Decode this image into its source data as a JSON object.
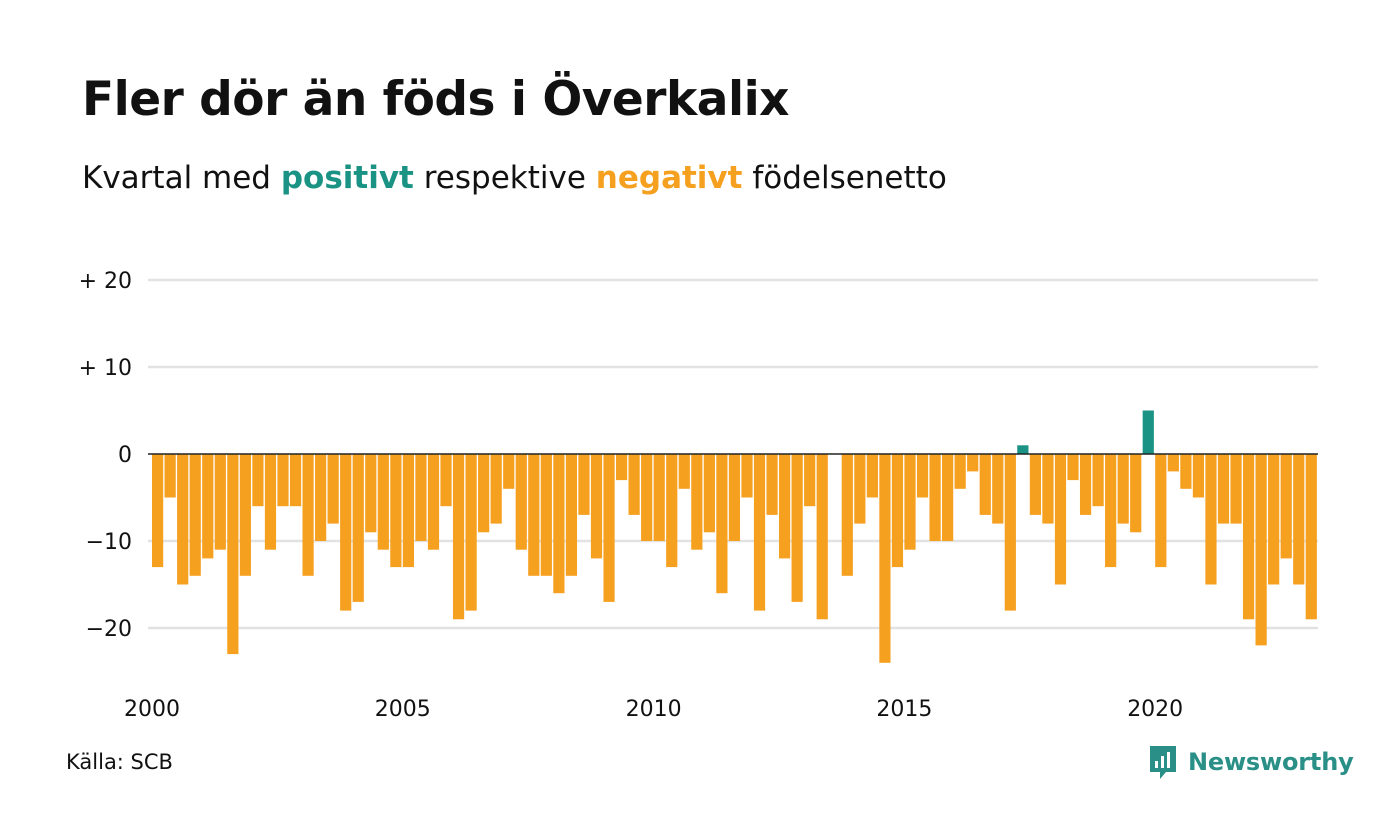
{
  "header": {
    "title": "Fler dör än föds i Överkalix",
    "subtitle_pre": "Kvartal med ",
    "subtitle_pos": "positivt",
    "subtitle_mid": " respektive ",
    "subtitle_neg": "negativt",
    "subtitle_post": " födelsenetto"
  },
  "footer": {
    "source": "Källa: SCB",
    "brand": "Newsworthy",
    "brand_icon": "bar-chart-speech-bubble-icon"
  },
  "colors": {
    "positive": "#1a9384",
    "negative": "#f6a020",
    "grid": "#e2e2e2",
    "zero_line": "#222222",
    "brand": "#2a8f86"
  },
  "chart_data": {
    "type": "bar",
    "title": "Fler dör än föds i Överkalix",
    "xlabel": "",
    "ylabel": "",
    "x_start": 2000,
    "x_end": 2023.25,
    "xticks": [
      2000,
      2005,
      2010,
      2015,
      2020
    ],
    "xtick_labels": [
      "2000",
      "2005",
      "2010",
      "2015",
      "2020"
    ],
    "yticks": [
      20,
      10,
      0,
      -10,
      -20
    ],
    "ytick_labels": [
      "+ 20",
      "+ 10",
      "0",
      "−10",
      "−20"
    ],
    "ylim": [
      -25,
      20
    ],
    "grid": true,
    "legend": "none",
    "period": "quarter",
    "first_quarter": "2000 Q1",
    "values": [
      -13,
      -5,
      -15,
      -14,
      -12,
      -11,
      -23,
      -14,
      -6,
      -11,
      -6,
      -6,
      -14,
      -10,
      -8,
      -18,
      -17,
      -9,
      -11,
      -13,
      -13,
      -10,
      -11,
      -6,
      -19,
      -18,
      -9,
      -8,
      -4,
      -11,
      -14,
      -14,
      -16,
      -14,
      -7,
      -12,
      -17,
      -3,
      -7,
      -10,
      -10,
      -13,
      -4,
      -11,
      -9,
      -16,
      -10,
      -5,
      -18,
      -7,
      -12,
      -17,
      -6,
      -19,
      0,
      -14,
      -8,
      -5,
      -24,
      -13,
      -11,
      -5,
      -10,
      -10,
      -4,
      -2,
      -7,
      -8,
      -18,
      1,
      -7,
      -8,
      -15,
      -3,
      -7,
      -6,
      -13,
      -8,
      -9,
      5,
      -13,
      -2,
      -4,
      -5,
      -15,
      -8,
      -8,
      -19,
      -22,
      -15,
      -12,
      -15,
      -19
    ]
  }
}
